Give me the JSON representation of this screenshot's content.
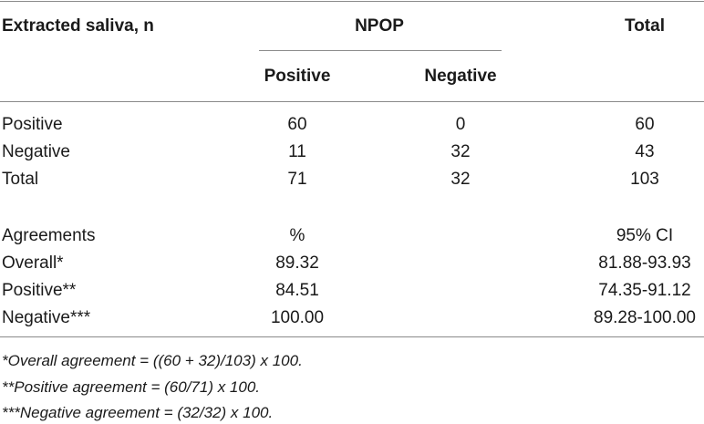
{
  "table": {
    "header": {
      "row_label": "Extracted saliva, n",
      "group": "NPOP",
      "total": "Total",
      "sub_positive": "Positive",
      "sub_negative": "Negative"
    },
    "rows": [
      {
        "label": "Positive",
        "pos": "60",
        "neg": "0",
        "total": "60"
      },
      {
        "label": "Negative",
        "pos": "11",
        "neg": "32",
        "total": "43"
      },
      {
        "label": "Total",
        "pos": "71",
        "neg": "32",
        "total": "103"
      }
    ],
    "agreements": {
      "label": "Agreements",
      "pct_header": "%",
      "ci_header": "95% CI",
      "rows": [
        {
          "label": "Overall*",
          "pct": "89.32",
          "ci": "81.88-93.93"
        },
        {
          "label": "Positive**",
          "pct": "84.51",
          "ci": "74.35-91.12"
        },
        {
          "label": "Negative***",
          "pct": "100.00",
          "ci": "89.28-100.00"
        }
      ]
    },
    "footnotes": [
      "*Overall agreement = ((60 + 32)/103) x 100.",
      "**Positive agreement = (60/71) x 100.",
      "***Negative agreement = (32/32) x 100."
    ]
  }
}
